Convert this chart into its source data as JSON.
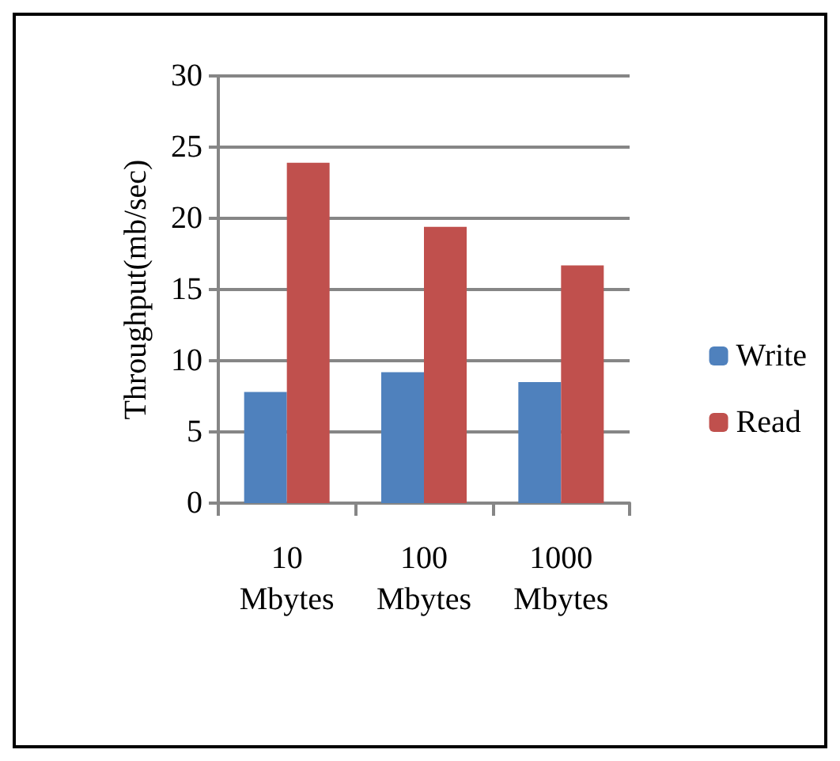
{
  "chart_data": {
    "type": "bar",
    "ylabel": "Throughput(mb/sec)",
    "categories": [
      "10\nMbytes",
      "100\nMbytes",
      "1000\nMbytes"
    ],
    "series": [
      {
        "name": "Write",
        "color": "#4f81bd",
        "values": [
          7.8,
          9.2,
          8.5
        ]
      },
      {
        "name": "Read",
        "color": "#c0504d",
        "values": [
          23.9,
          19.4,
          16.7
        ]
      }
    ],
    "ylim": [
      0,
      30
    ],
    "yticks": [
      0,
      5,
      10,
      15,
      20,
      25,
      30
    ],
    "grid": "y",
    "legend": "right"
  }
}
